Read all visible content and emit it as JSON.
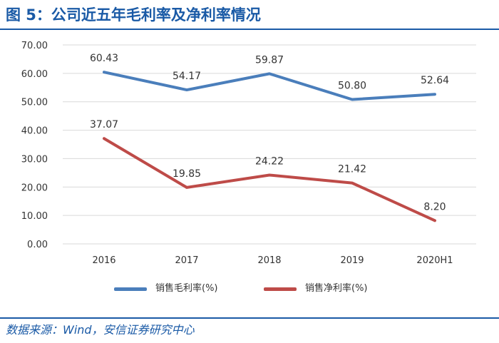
{
  "header": {
    "title": "图 5：公司近五年毛利率及净利率情况"
  },
  "footer": {
    "source": "数据来源：Wind，安信证券研究中心"
  },
  "colors": {
    "brand": "#1a5aa6",
    "series_gross": "#4a7ebb",
    "series_net": "#be4b48",
    "grid": "#d9d9d9"
  },
  "chart_data": {
    "type": "line",
    "title": "",
    "xlabel": "",
    "ylabel": "",
    "categories": [
      "2016",
      "2017",
      "2018",
      "2019",
      "2020H1"
    ],
    "ylim": [
      0,
      70
    ],
    "yticks": [
      "0.00",
      "10.00",
      "20.00",
      "30.00",
      "40.00",
      "50.00",
      "60.00",
      "70.00"
    ],
    "grid": true,
    "legend_position": "bottom",
    "series": [
      {
        "name": "销售毛利率(%)",
        "values": [
          60.43,
          54.17,
          59.87,
          50.8,
          52.64
        ],
        "labels": [
          "60.43",
          "54.17",
          "59.87",
          "50.80",
          "52.64"
        ]
      },
      {
        "name": "销售净利率(%)",
        "values": [
          37.07,
          19.85,
          24.22,
          21.42,
          8.2
        ],
        "labels": [
          "37.07",
          "19.85",
          "24.22",
          "21.42",
          "8.20"
        ]
      }
    ]
  }
}
